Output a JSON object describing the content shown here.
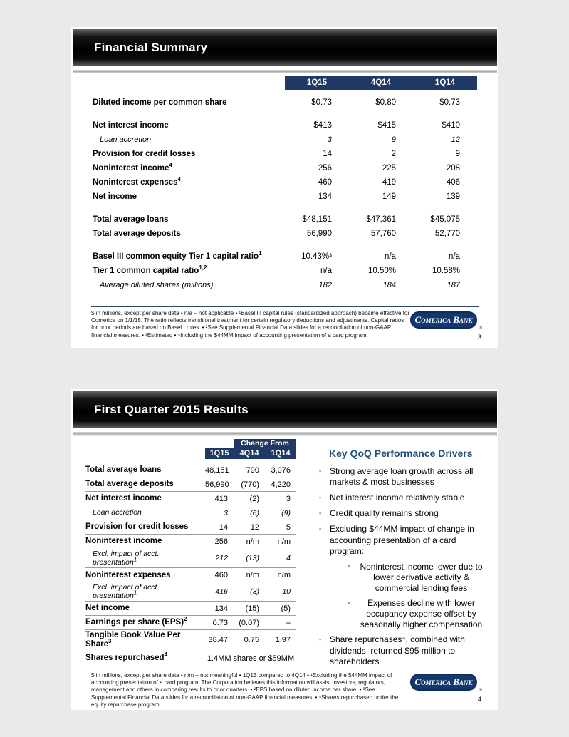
{
  "colors": {
    "accent_blue": "#1f3864",
    "header_black": "#000000",
    "page_background": "#e9eaea"
  },
  "logo": {
    "text": "Comerica Bank",
    "registered": "®"
  },
  "slide3": {
    "title": "Financial Summary",
    "page_number": "3",
    "columns": [
      "1Q15",
      "4Q14",
      "1Q14"
    ],
    "rows": [
      {
        "label": "Diluted income per common share",
        "sup": "",
        "variant": "bold",
        "values": [
          "$0.73",
          "$0.80",
          "$0.73"
        ]
      },
      {
        "label": "Net interest income",
        "sup": "",
        "variant": "bold",
        "spacer_before": true,
        "values": [
          "$413",
          "$415",
          "$410"
        ]
      },
      {
        "label": "Loan accretion",
        "sup": "",
        "variant": "italic",
        "values": [
          "3",
          "9",
          "12"
        ]
      },
      {
        "label": "Provision for credit losses",
        "sup": "",
        "variant": "bold",
        "values": [
          "14",
          "2",
          "9"
        ]
      },
      {
        "label": "Noninterest income",
        "sup": "4",
        "variant": "bold",
        "values": [
          "256",
          "225",
          "208"
        ]
      },
      {
        "label": "Noninterest expenses",
        "sup": "4",
        "variant": "bold",
        "values": [
          "460",
          "419",
          "406"
        ]
      },
      {
        "label": "Net income",
        "sup": "",
        "variant": "bold",
        "values": [
          "134",
          "149",
          "139"
        ]
      },
      {
        "label": "Total average loans",
        "sup": "",
        "variant": "bold",
        "spacer_before": true,
        "values": [
          "$48,151",
          "$47,361",
          "$45,075"
        ]
      },
      {
        "label": "Total average deposits",
        "sup": "",
        "variant": "bold",
        "values": [
          "56,990",
          "57,760",
          "52,770"
        ]
      },
      {
        "label": "Basel III common equity Tier 1 capital ratio",
        "sup": "1",
        "variant": "bold",
        "spacer_before": true,
        "values": [
          "10.43%³",
          "n/a",
          "n/a"
        ]
      },
      {
        "label": "Tier 1 common capital ratio",
        "sup": "1,2",
        "variant": "bold",
        "values": [
          "n/a",
          "10.50%",
          "10.58%"
        ]
      },
      {
        "label": "Average diluted shares (millions)",
        "sup": "",
        "variant": "italic",
        "values": [
          "182",
          "184",
          "187"
        ]
      }
    ],
    "footnote": "$ in millions, except per share data • n/a – not applicable • ¹Basel III capital rules (standardized approach) became effective for Comerica on 1/1/15.  The ratio reflects transitional treatment for certain regulatory deductions and adjustments. Capital ratios for prior periods are based on Basel I rules. • ²See Supplemental Financial Data slides for a reconciliation of non-GAAP financial measures. • ³Estimated • ⁴Including the $44MM impact of accounting presentation of a card program."
  },
  "slide4": {
    "title": "First Quarter 2015 Results",
    "page_number": "4",
    "header": {
      "q1": "1Q15",
      "change_from": "Change From",
      "prev_q": "4Q14",
      "prev_y": "1Q14"
    },
    "rows": [
      {
        "label": "Total average loans",
        "sup": "",
        "variant": "bold",
        "values": [
          "48,151",
          "790",
          "3,076"
        ]
      },
      {
        "label": "Total average deposits",
        "sup": "",
        "variant": "bold",
        "rule": true,
        "values": [
          "56,990",
          "(770)",
          "4,220"
        ]
      },
      {
        "label": "Net interest income",
        "sup": "",
        "variant": "bold",
        "values": [
          "413",
          "(2)",
          "3"
        ]
      },
      {
        "label": "Loan accretion",
        "sup": "",
        "variant": "italic",
        "rule": true,
        "values": [
          "3",
          "(6)",
          "(9)"
        ]
      },
      {
        "label": "Provision for credit losses",
        "sup": "",
        "variant": "bold",
        "rule": true,
        "values": [
          "14",
          "12",
          "5"
        ]
      },
      {
        "label": "Noninterest income",
        "sup": "",
        "variant": "bold",
        "values": [
          "256",
          "n/m",
          "n/m"
        ]
      },
      {
        "label": "Excl. impact of acct. presentation",
        "sup": "1",
        "variant": "italic",
        "rule": true,
        "values": [
          "212",
          "(13)",
          "4"
        ]
      },
      {
        "label": "Noninterest expenses",
        "sup": "",
        "variant": "bold",
        "values": [
          "460",
          "n/m",
          "n/m"
        ]
      },
      {
        "label": "Excl. impact of acct. presentation",
        "sup": "1",
        "variant": "italic",
        "rule": true,
        "values": [
          "416",
          "(3)",
          "10"
        ]
      },
      {
        "label": "Net income",
        "sup": "",
        "variant": "bold",
        "rule": true,
        "values": [
          "134",
          "(15)",
          "(5)"
        ]
      },
      {
        "label": "Earnings per share (EPS)",
        "sup": "2",
        "variant": "bold",
        "rule": true,
        "values": [
          "0.73",
          "(0.07)",
          "--"
        ]
      },
      {
        "label": "Tangible Book Value Per Share",
        "sup": "3",
        "variant": "bold",
        "rule": true,
        "values": [
          "38.47",
          "0.75",
          "1.97"
        ]
      },
      {
        "label": "Shares repurchased",
        "sup": "4",
        "variant": "bold",
        "span_value": "1.4MM shares or $59MM"
      }
    ],
    "drivers": {
      "title": "Key QoQ Performance Drivers",
      "bullet_icon": "▪",
      "sub_bullet_icon": "•",
      "bullets": [
        {
          "level": 1,
          "text": "Strong average loan growth across all markets & most businesses"
        },
        {
          "level": 1,
          "text": "Net interest income relatively stable"
        },
        {
          "level": 1,
          "text": "Credit quality remains strong"
        },
        {
          "level": 1,
          "text": "Excluding $44MM impact of change in accounting presentation of a card program:"
        },
        {
          "level": 2,
          "text": "Noninterest income lower due to lower derivative activity & commercial lending fees"
        },
        {
          "level": 2,
          "text": "Expenses decline with lower occupancy expense offset by seasonally higher compensation"
        },
        {
          "level": 1,
          "text": "Share repurchases⁴, combined with dividends, returned $95 million to shareholders"
        }
      ]
    },
    "footnote": "$ in millions, except per share data • n/m – not meaningful • 1Q15 compared to 4Q14 • ¹Excluding the $44MM impact of accounting presentation of a card program. The Corporation believes this information will assist investors, regulators, management and others in comparing results to prior quarters. • ²EPS based on diluted income per share. • ³See Supplemental Financial Data slides for a reconciliation of non-GAAP financial measures. • ⁴Shares repurchased under the equity repurchase program."
  }
}
